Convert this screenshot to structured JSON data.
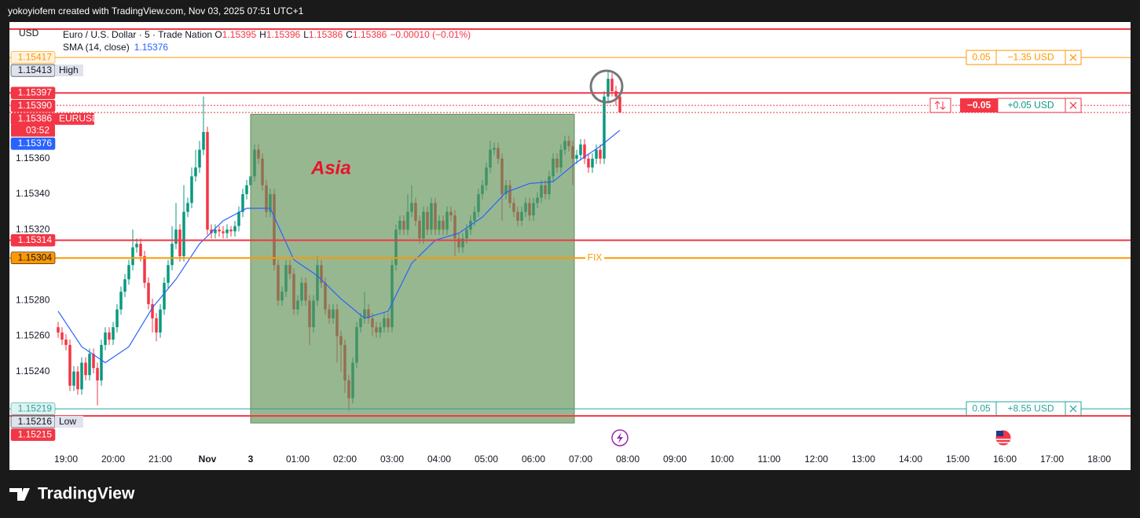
{
  "header": {
    "text": "yokoyiofem created with TradingView.com, Nov 03, 2025 07:51 UTC+1"
  },
  "footer": {
    "brand": "TradingView"
  },
  "chart_data": {
    "type": "candlestick",
    "currency": "USD",
    "legend": {
      "title": "Euro / U.S. Dollar · 5 · Trade Nation",
      "fields": [
        {
          "key": "O",
          "value": 1.15395
        },
        {
          "key": "H",
          "value": 1.15396
        },
        {
          "key": "L",
          "value": 1.15386
        },
        {
          "key": "C",
          "value": 1.15386
        }
      ],
      "change": "−0.00010 (−0.01%)"
    },
    "up_color": "#089981",
    "down_color": "#f23645",
    "xlim": [
      -14.4,
      271
    ],
    "ylim": [
      1.15196,
      1.15437
    ],
    "xticks": [
      {
        "value": 0,
        "label": "19:00"
      },
      {
        "value": 12,
        "label": "20:00"
      },
      {
        "value": 24,
        "label": "21:00"
      },
      {
        "value": 36,
        "label": "Nov"
      },
      {
        "value": 47,
        "label": "3"
      },
      {
        "value": 59,
        "label": "01:00"
      },
      {
        "value": 71,
        "label": "02:00"
      },
      {
        "value": 83,
        "label": "03:00"
      },
      {
        "value": 95,
        "label": "04:00"
      },
      {
        "value": 107,
        "label": "05:00"
      },
      {
        "value": 119,
        "label": "06:00"
      },
      {
        "value": 131,
        "label": "07:00"
      },
      {
        "value": 143,
        "label": "08:00"
      },
      {
        "value": 155,
        "label": "09:00"
      },
      {
        "value": 167,
        "label": "10:00"
      },
      {
        "value": 179,
        "label": "11:00"
      },
      {
        "value": 191,
        "label": "12:00"
      },
      {
        "value": 203,
        "label": "13:00"
      },
      {
        "value": 215,
        "label": "14:00"
      },
      {
        "value": 227,
        "label": "15:00"
      },
      {
        "value": 239,
        "label": "16:00"
      },
      {
        "value": 251,
        "label": "17:00"
      },
      {
        "value": 263,
        "label": "18:00"
      }
    ],
    "yticks": [
      {
        "value": 1.1536,
        "label": "1.15360"
      },
      {
        "value": 1.1534,
        "label": "1.15340"
      },
      {
        "value": 1.1532,
        "label": "1.15320"
      },
      {
        "value": 1.1528,
        "label": "1.15280"
      },
      {
        "value": 1.1526,
        "label": "1.15260"
      },
      {
        "value": 1.1524,
        "label": "1.15240"
      }
    ],
    "x": [
      -2,
      -1,
      0,
      1,
      2,
      3,
      4,
      5,
      6,
      7,
      8,
      9,
      10,
      11,
      12,
      13,
      14,
      15,
      16,
      17,
      18,
      19,
      20,
      21,
      22,
      23,
      24,
      25,
      26,
      27,
      28,
      29,
      30,
      31,
      32,
      33,
      34,
      35,
      36,
      37,
      38,
      39,
      40,
      41,
      42,
      43,
      44,
      45,
      46,
      47,
      48,
      49,
      50,
      51,
      52,
      53,
      54,
      55,
      56,
      57,
      58,
      59,
      60,
      61,
      62,
      63,
      64,
      65,
      66,
      67,
      68,
      69,
      70,
      71,
      72,
      73,
      74,
      75,
      76,
      77,
      78,
      79,
      80,
      81,
      82,
      83,
      84,
      85,
      86,
      87,
      88,
      89,
      90,
      91,
      92,
      93,
      94,
      95,
      96,
      97,
      98,
      99,
      100,
      101,
      102,
      103,
      104,
      105,
      106,
      107,
      108,
      109,
      110,
      111,
      112,
      113,
      114,
      115,
      116,
      117,
      118,
      119,
      120,
      121,
      122,
      123,
      124,
      125,
      126,
      127,
      128,
      129,
      130,
      131,
      132,
      133,
      134,
      135,
      136,
      137,
      138,
      139,
      140,
      141
    ],
    "ohlc": [
      [
        1.15265,
        1.15268,
        1.15259,
        1.15262
      ],
      [
        1.15262,
        1.15265,
        1.15255,
        1.15258
      ],
      [
        1.15258,
        1.15261,
        1.15252,
        1.15255
      ],
      [
        1.15255,
        1.15258,
        1.15229,
        1.15232
      ],
      [
        1.15232,
        1.15243,
        1.15229,
        1.1524
      ],
      [
        1.1524,
        1.15243,
        1.15227,
        1.1523
      ],
      [
        1.1523,
        1.15248,
        1.15227,
        1.15245
      ],
      [
        1.15245,
        1.15248,
        1.15235,
        1.15238
      ],
      [
        1.15238,
        1.15253,
        1.15235,
        1.1525
      ],
      [
        1.1525,
        1.15253,
        1.15239,
        1.15242
      ],
      [
        1.15242,
        1.15245,
        1.15221,
        1.15235
      ],
      [
        1.15235,
        1.15258,
        1.15232,
        1.15255
      ],
      [
        1.15255,
        1.15265,
        1.15252,
        1.15262
      ],
      [
        1.15262,
        1.15265,
        1.15255,
        1.15258
      ],
      [
        1.15258,
        1.15268,
        1.15255,
        1.15265
      ],
      [
        1.15265,
        1.15278,
        1.15262,
        1.15275
      ],
      [
        1.15275,
        1.15288,
        1.15272,
        1.15285
      ],
      [
        1.15285,
        1.15295,
        1.15282,
        1.15292
      ],
      [
        1.15292,
        1.15303,
        1.15289,
        1.153
      ],
      [
        1.153,
        1.1532,
        1.15297,
        1.1531
      ],
      [
        1.1531,
        1.15315,
        1.15307,
        1.15312
      ],
      [
        1.15312,
        1.15315,
        1.15302,
        1.15305
      ],
      [
        1.15305,
        1.15308,
        1.15287,
        1.1529
      ],
      [
        1.1529,
        1.15293,
        1.15275,
        1.15278
      ],
      [
        1.15278,
        1.15281,
        1.15262,
        1.1527
      ],
      [
        1.1527,
        1.15273,
        1.15257,
        1.15262
      ],
      [
        1.15262,
        1.15278,
        1.15259,
        1.15275
      ],
      [
        1.15275,
        1.15293,
        1.15272,
        1.1529
      ],
      [
        1.1529,
        1.15303,
        1.15287,
        1.153
      ],
      [
        1.153,
        1.15322,
        1.15297,
        1.15312
      ],
      [
        1.15312,
        1.15335,
        1.15309,
        1.1532
      ],
      [
        1.1532,
        1.15323,
        1.15302,
        1.15305
      ],
      [
        1.15305,
        1.15345,
        1.15302,
        1.1533
      ],
      [
        1.1533,
        1.15338,
        1.15327,
        1.15335
      ],
      [
        1.15335,
        1.15355,
        1.15332,
        1.1535
      ],
      [
        1.1535,
        1.15365,
        1.15347,
        1.15355
      ],
      [
        1.15355,
        1.1537,
        1.15352,
        1.15365
      ],
      [
        1.15365,
        1.15395,
        1.15362,
        1.15375
      ],
      [
        1.15375,
        1.15378,
        1.15317,
        1.1532
      ],
      [
        1.1532,
        1.15323,
        1.15315,
        1.15318
      ],
      [
        1.15318,
        1.15323,
        1.15315,
        1.1532
      ],
      [
        1.1532,
        1.15322,
        1.15316,
        1.15319
      ],
      [
        1.15319,
        1.15322,
        1.15315,
        1.15318
      ],
      [
        1.15318,
        1.15323,
        1.15315,
        1.1532
      ],
      [
        1.1532,
        1.15322,
        1.15316,
        1.15319
      ],
      [
        1.15319,
        1.15325,
        1.15316,
        1.15322
      ],
      [
        1.15322,
        1.15333,
        1.15319,
        1.1533
      ],
      [
        1.1533,
        1.15343,
        1.15327,
        1.1534
      ],
      [
        1.1534,
        1.15348,
        1.15337,
        1.15345
      ],
      [
        1.15345,
        1.15353,
        1.15342,
        1.1535
      ],
      [
        1.1535,
        1.15368,
        1.15347,
        1.15365
      ],
      [
        1.15365,
        1.15368,
        1.15357,
        1.1536
      ],
      [
        1.1536,
        1.15363,
        1.15342,
        1.15345
      ],
      [
        1.15345,
        1.15348,
        1.15327,
        1.1533
      ],
      [
        1.1533,
        1.15343,
        1.15327,
        1.1534
      ],
      [
        1.1534,
        1.15343,
        1.15297,
        1.153
      ],
      [
        1.153,
        1.15303,
        1.15277,
        1.1528
      ],
      [
        1.1528,
        1.15288,
        1.15277,
        1.15285
      ],
      [
        1.15285,
        1.15303,
        1.15282,
        1.153
      ],
      [
        1.153,
        1.15303,
        1.15292,
        1.15295
      ],
      [
        1.15295,
        1.15298,
        1.15272,
        1.15275
      ],
      [
        1.15275,
        1.15283,
        1.15272,
        1.1528
      ],
      [
        1.1528,
        1.15293,
        1.15277,
        1.1529
      ],
      [
        1.1529,
        1.15293,
        1.15277,
        1.1528
      ],
      [
        1.1528,
        1.15283,
        1.15255,
        1.15265
      ],
      [
        1.15265,
        1.15283,
        1.15262,
        1.1528
      ],
      [
        1.1528,
        1.15305,
        1.15277,
        1.153
      ],
      [
        1.153,
        1.15303,
        1.15287,
        1.1529
      ],
      [
        1.1529,
        1.15293,
        1.15272,
        1.15275
      ],
      [
        1.15275,
        1.15278,
        1.15267,
        1.1527
      ],
      [
        1.1527,
        1.15278,
        1.15267,
        1.15275
      ],
      [
        1.15275,
        1.15278,
        1.15245,
        1.1526
      ],
      [
        1.1526,
        1.15263,
        1.1524,
        1.15255
      ],
      [
        1.15255,
        1.15258,
        1.15228,
        1.15235
      ],
      [
        1.15235,
        1.15238,
        1.15218,
        1.15225
      ],
      [
        1.15225,
        1.15248,
        1.15222,
        1.15245
      ],
      [
        1.15245,
        1.15268,
        1.15242,
        1.15265
      ],
      [
        1.15265,
        1.15273,
        1.15262,
        1.1527
      ],
      [
        1.1527,
        1.15285,
        1.15267,
        1.15275
      ],
      [
        1.15275,
        1.15278,
        1.15267,
        1.1527
      ],
      [
        1.1527,
        1.15273,
        1.1526,
        1.15265
      ],
      [
        1.15265,
        1.15268,
        1.15259,
        1.15262
      ],
      [
        1.15262,
        1.15268,
        1.15259,
        1.15265
      ],
      [
        1.15265,
        1.15273,
        1.15262,
        1.1527
      ],
      [
        1.1527,
        1.15273,
        1.15262,
        1.15265
      ],
      [
        1.15265,
        1.15303,
        1.15262,
        1.153
      ],
      [
        1.153,
        1.15323,
        1.15297,
        1.1532
      ],
      [
        1.1532,
        1.15328,
        1.15317,
        1.15325
      ],
      [
        1.15325,
        1.15328,
        1.15317,
        1.1532
      ],
      [
        1.1532,
        1.1534,
        1.15317,
        1.1533
      ],
      [
        1.1533,
        1.15345,
        1.15327,
        1.15335
      ],
      [
        1.15335,
        1.15338,
        1.15322,
        1.15325
      ],
      [
        1.15325,
        1.15328,
        1.15312,
        1.15315
      ],
      [
        1.15315,
        1.15333,
        1.15312,
        1.1533
      ],
      [
        1.1533,
        1.15333,
        1.15317,
        1.1532
      ],
      [
        1.1532,
        1.15338,
        1.15317,
        1.15335
      ],
      [
        1.15335,
        1.15338,
        1.15317,
        1.1532
      ],
      [
        1.1532,
        1.15328,
        1.15317,
        1.15325
      ],
      [
        1.15325,
        1.15328,
        1.15317,
        1.1532
      ],
      [
        1.1532,
        1.15333,
        1.15317,
        1.1533
      ],
      [
        1.1533,
        1.15333,
        1.15325,
        1.15328
      ],
      [
        1.15328,
        1.15331,
        1.15305,
        1.15315
      ],
      [
        1.15315,
        1.15318,
        1.15307,
        1.1531
      ],
      [
        1.1531,
        1.15318,
        1.15307,
        1.15315
      ],
      [
        1.15315,
        1.15323,
        1.15312,
        1.1532
      ],
      [
        1.1532,
        1.15328,
        1.15317,
        1.15325
      ],
      [
        1.15325,
        1.15333,
        1.15322,
        1.1533
      ],
      [
        1.1533,
        1.15343,
        1.15327,
        1.1534
      ],
      [
        1.1534,
        1.15348,
        1.15337,
        1.15345
      ],
      [
        1.15345,
        1.15358,
        1.15342,
        1.15355
      ],
      [
        1.15355,
        1.1537,
        1.15352,
        1.15365
      ],
      [
        1.15365,
        1.15369,
        1.15362,
        1.15366
      ],
      [
        1.15366,
        1.15369,
        1.15357,
        1.1536
      ],
      [
        1.1536,
        1.15363,
        1.15325,
        1.1534
      ],
      [
        1.1534,
        1.15348,
        1.15337,
        1.15345
      ],
      [
        1.15345,
        1.15348,
        1.15332,
        1.15335
      ],
      [
        1.15335,
        1.15338,
        1.15327,
        1.1533
      ],
      [
        1.1533,
        1.15333,
        1.15322,
        1.15325
      ],
      [
        1.15325,
        1.15333,
        1.15322,
        1.1533
      ],
      [
        1.1533,
        1.15338,
        1.15327,
        1.15335
      ],
      [
        1.15335,
        1.15338,
        1.15325,
        1.15328
      ],
      [
        1.15328,
        1.15338,
        1.15325,
        1.15335
      ],
      [
        1.15335,
        1.15341,
        1.15332,
        1.15338
      ],
      [
        1.15338,
        1.15348,
        1.15335,
        1.15345
      ],
      [
        1.15345,
        1.15348,
        1.15337,
        1.1534
      ],
      [
        1.1534,
        1.15353,
        1.15337,
        1.1535
      ],
      [
        1.1535,
        1.15363,
        1.15347,
        1.1536
      ],
      [
        1.1536,
        1.15363,
        1.15352,
        1.15355
      ],
      [
        1.15355,
        1.15368,
        1.15352,
        1.15365
      ],
      [
        1.15365,
        1.15373,
        1.15362,
        1.1537
      ],
      [
        1.1537,
        1.15373,
        1.15364,
        1.15367
      ],
      [
        1.15367,
        1.1537,
        1.15345,
        1.1536
      ],
      [
        1.1536,
        1.15365,
        1.15357,
        1.15362
      ],
      [
        1.15362,
        1.15371,
        1.15359,
        1.15368
      ],
      [
        1.15368,
        1.15371,
        1.15357,
        1.1536
      ],
      [
        1.1536,
        1.15363,
        1.15352,
        1.15355
      ],
      [
        1.15355,
        1.15363,
        1.15352,
        1.1536
      ],
      [
        1.1536,
        1.15368,
        1.15357,
        1.15365
      ],
      [
        1.15365,
        1.15368,
        1.15357,
        1.1536
      ],
      [
        1.1536,
        1.15398,
        1.15357,
        1.15395
      ],
      [
        1.15395,
        1.1541,
        1.15392,
        1.15405
      ],
      [
        1.15405,
        1.15408,
        1.15395,
        1.15398
      ],
      [
        1.15398,
        1.15401,
        1.1539,
        1.15395
      ],
      [
        1.15395,
        1.15396,
        1.15386,
        1.15386
      ]
    ],
    "series": [
      {
        "name": "SMA (14, close)",
        "color": "#2962ff",
        "last_value": 1.15376,
        "x": [
          -2,
          4,
          10,
          16,
          22,
          28,
          34,
          40,
          46,
          52,
          58,
          64,
          70,
          76,
          82,
          88,
          94,
          100,
          106,
          112,
          118,
          124,
          130,
          136,
          141
        ],
        "values": [
          1.15274,
          1.15254,
          1.15245,
          1.15254,
          1.15276,
          1.15292,
          1.15312,
          1.15325,
          1.15332,
          1.15332,
          1.15303,
          1.15294,
          1.15281,
          1.1527,
          1.15274,
          1.15301,
          1.15314,
          1.15318,
          1.15327,
          1.15341,
          1.15346,
          1.15347,
          1.15358,
          1.15367,
          1.15376
        ]
      }
    ],
    "annotations": [
      {
        "text": "Asia",
        "x": [
          47,
          129.4
        ],
        "y": [
          1.15211,
          1.15385
        ],
        "fill": "#5f9156",
        "text_color": "#e8132b"
      }
    ],
    "levels": [
      {
        "value": 1.15433,
        "color": "#f23645"
      },
      {
        "value": 1.15417,
        "color": "#ff9800",
        "width": 1,
        "order": {
          "qty": 0.05,
          "pnl": "−1.35 USD",
          "pnl_color": "#ff9800"
        }
      },
      {
        "value": 1.15397,
        "color": "#f23645"
      },
      {
        "value": 1.1539,
        "color": "#f23645",
        "width": 1,
        "dash": true,
        "order": {
          "qty": "−0.05",
          "pnl": "+0.05 USD",
          "pnl_color": "#089981"
        }
      },
      {
        "value": 1.15386,
        "color": "#f23645",
        "width": 1,
        "dash": true
      },
      {
        "value": 1.15314,
        "color": "#f23645"
      },
      {
        "value": 1.15304,
        "color": "#ff9800",
        "text": "FIX"
      },
      {
        "value": 1.15219,
        "color": "#26a69a",
        "width": 1,
        "order": {
          "qty": 0.05,
          "pnl": "+8.55 USD",
          "pnl_color": "#26a69a"
        }
      },
      {
        "value": 1.15215,
        "color": "#f23645"
      }
    ],
    "badges": [
      {
        "value": 1.15417,
        "fill": "#fff3e0",
        "ink": "#ff9800"
      },
      {
        "value": 1.15413,
        "fill": "#e0e3eb",
        "ink": "#131722",
        "tag": "High"
      },
      {
        "value": 1.15397,
        "fill": "#f23645",
        "ink": "#ffffff"
      },
      {
        "value": {
          "value": 1.1539,
          "label": "1.15390"
        },
        "fill": "#f23645",
        "ink": "#ffffff"
      },
      {
        "value": 1.15386,
        "fill": "#f23645",
        "ink": "#ffffff",
        "tag": "EURUSD",
        "timer": "03:52"
      },
      {
        "value": 1.15376,
        "fill": "#2962ff",
        "ink": "#ffffff"
      },
      {
        "value": 1.15314,
        "fill": "#f23645",
        "ink": "#ffffff"
      },
      {
        "value": 1.15304,
        "fill": "#ff9800",
        "ink": "#131722"
      },
      {
        "value": 1.15219,
        "fill": "#e0f2f1",
        "ink": "#26a69a"
      },
      {
        "value": 1.15216,
        "fill": "#e0e3eb",
        "ink": "#131722",
        "tag": "Low"
      },
      {
        "value": 1.15215,
        "fill": "#f23645",
        "ink": "#ffffff"
      }
    ]
  }
}
